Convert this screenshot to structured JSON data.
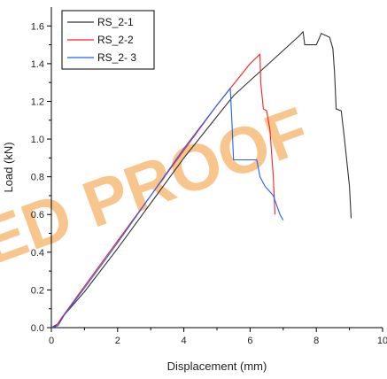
{
  "chart_data": {
    "type": "line",
    "title": "",
    "xlabel": "Displacement (mm)",
    "ylabel": "Load (kN)",
    "xlim": [
      0,
      10
    ],
    "ylim": [
      0,
      1.7
    ],
    "xticks": [
      0,
      2,
      4,
      6,
      8,
      10
    ],
    "xtick_labels": [
      "0",
      "2",
      "4",
      "6",
      "8",
      "10"
    ],
    "yticks": [
      0.0,
      0.2,
      0.4,
      0.6,
      0.8,
      1.0,
      1.2,
      1.4,
      1.6
    ],
    "ytick_labels": [
      "0.0",
      "0.2",
      "0.4",
      "0.6",
      "0.8",
      "1.0",
      "1.2",
      "1.4",
      "1.6"
    ],
    "grid": false,
    "legend_position": "top-left",
    "series": [
      {
        "name": "RS_2-1",
        "color": "#333333",
        "points": [
          [
            0.0,
            0.0
          ],
          [
            0.2,
            0.02
          ],
          [
            0.4,
            0.07
          ],
          [
            1.0,
            0.19
          ],
          [
            2.0,
            0.42
          ],
          [
            3.0,
            0.66
          ],
          [
            4.0,
            0.9
          ],
          [
            5.0,
            1.12
          ],
          [
            5.5,
            1.23
          ],
          [
            6.0,
            1.31
          ],
          [
            6.5,
            1.39
          ],
          [
            7.0,
            1.47
          ],
          [
            7.5,
            1.55
          ],
          [
            7.6,
            1.57
          ],
          [
            7.65,
            1.5
          ],
          [
            8.0,
            1.5
          ],
          [
            8.15,
            1.56
          ],
          [
            8.4,
            1.54
          ],
          [
            8.5,
            1.48
          ],
          [
            8.55,
            1.35
          ],
          [
            8.6,
            1.16
          ],
          [
            8.75,
            1.15
          ],
          [
            8.85,
            1.0
          ],
          [
            9.0,
            0.75
          ],
          [
            9.05,
            0.58
          ]
        ]
      },
      {
        "name": "RS_2-2",
        "color": "#ff2020",
        "points": [
          [
            0.0,
            0.0
          ],
          [
            0.15,
            0.01
          ],
          [
            0.3,
            0.05
          ],
          [
            1.0,
            0.22
          ],
          [
            2.0,
            0.46
          ],
          [
            3.0,
            0.7
          ],
          [
            4.0,
            0.94
          ],
          [
            5.0,
            1.18
          ],
          [
            6.0,
            1.4
          ],
          [
            6.3,
            1.45
          ],
          [
            6.32,
            1.3
          ],
          [
            6.4,
            1.16
          ],
          [
            6.5,
            1.15
          ],
          [
            6.6,
            1.05
          ],
          [
            6.7,
            0.8
          ],
          [
            6.75,
            0.6
          ]
        ]
      },
      {
        "name": "RS_2- 3",
        "color": "#2060ff",
        "points": [
          [
            0.0,
            0.0
          ],
          [
            0.2,
            0.01
          ],
          [
            0.4,
            0.07
          ],
          [
            1.0,
            0.21
          ],
          [
            2.0,
            0.45
          ],
          [
            3.0,
            0.7
          ],
          [
            4.0,
            0.95
          ],
          [
            5.0,
            1.18
          ],
          [
            5.4,
            1.27
          ],
          [
            5.45,
            1.1
          ],
          [
            5.5,
            0.89
          ],
          [
            5.9,
            0.89
          ],
          [
            6.2,
            0.89
          ],
          [
            6.3,
            0.8
          ],
          [
            6.45,
            0.75
          ],
          [
            6.7,
            0.7
          ],
          [
            6.9,
            0.6
          ],
          [
            7.0,
            0.57
          ]
        ]
      }
    ]
  },
  "watermark": {
    "text": "ED PROOF",
    "color": "#f5a040"
  }
}
